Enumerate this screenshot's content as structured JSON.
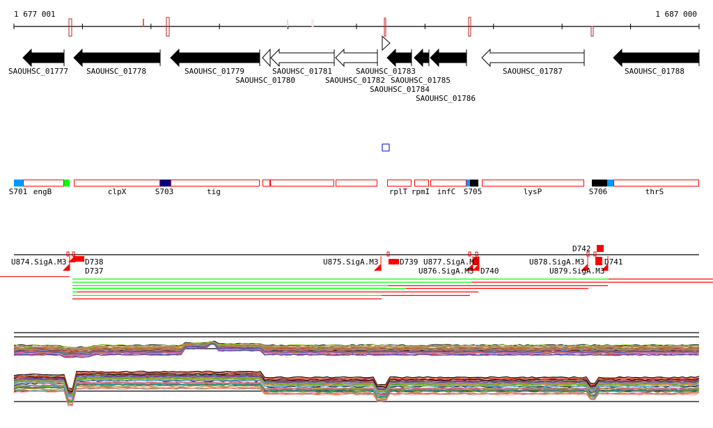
{
  "ruler": {
    "start_label": "1 677 001",
    "end_label": "1 687 000"
  },
  "genes": [
    {
      "id": "SAOUHSC_01777",
      "strand": "-",
      "filled": true
    },
    {
      "id": "SAOUHSC_01778",
      "strand": "-",
      "filled": true
    },
    {
      "id": "SAOUHSC_01779",
      "strand": "-",
      "filled": true
    },
    {
      "id": "SAOUHSC_01780",
      "strand": "-",
      "filled": false
    },
    {
      "id": "SAOUHSC_01781",
      "strand": "-",
      "filled": false
    },
    {
      "id": "SAOUHSC_01782",
      "strand": "-",
      "filled": false
    },
    {
      "id": "SAOUHSC_01783",
      "strand": "+",
      "filled": false
    },
    {
      "id": "SAOUHSC_01784",
      "strand": "-",
      "filled": true
    },
    {
      "id": "SAOUHSC_01785",
      "strand": "-",
      "filled": true
    },
    {
      "id": "SAOUHSC_01786",
      "strand": "-",
      "filled": true
    },
    {
      "id": "SAOUHSC_01787",
      "strand": "-",
      "filled": false
    },
    {
      "id": "SAOUHSC_01788",
      "strand": "-",
      "filled": true
    }
  ],
  "features": {
    "labels": [
      "S701",
      "engB",
      "clpX",
      "S703",
      "tig",
      "rplT",
      "rpmI",
      "infC",
      "S705",
      "lysP",
      "S706",
      "thrS"
    ]
  },
  "promoters": {
    "labels": [
      "U874.SigA.M3",
      "D738",
      "D737",
      "U875.SigA.M3",
      "D739",
      "U876.SigA.M3",
      "U877.SigA.M3",
      "D740",
      "U878.SigA.M3",
      "U879.SigA.M3",
      "D741",
      "D742"
    ]
  },
  "colors": {
    "feature_outline": "#ff0000",
    "blue": "#0099ff",
    "navy": "#000080",
    "green": "#00ff00",
    "black": "#000000",
    "marker": "#cc0000"
  }
}
